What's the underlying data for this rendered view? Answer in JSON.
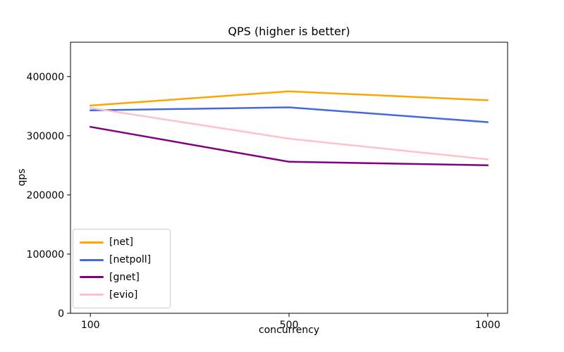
{
  "chart_data": {
    "type": "line",
    "title": "QPS (higher is better)",
    "xlabel": "concurrency",
    "ylabel": "qps",
    "x_scale": "categorical",
    "categories": [
      "100",
      "500",
      "1000"
    ],
    "series": [
      {
        "name": "[net]",
        "color": "#ffa500",
        "values": [
          351000,
          375000,
          360000
        ]
      },
      {
        "name": "[netpoll]",
        "color": "#4169e1",
        "values": [
          343000,
          348000,
          323000
        ]
      },
      {
        "name": "[gnet]",
        "color": "#800080",
        "values": [
          315000,
          256000,
          250000
        ]
      },
      {
        "name": "[evio]",
        "color": "#ffc0cb",
        "values": [
          347000,
          295000,
          260000
        ]
      }
    ],
    "ylim": [
      0,
      458000
    ],
    "yticks": [
      0,
      100000,
      200000,
      300000,
      400000
    ],
    "legend_position": "lower left",
    "grid": false,
    "line_width": 2.5,
    "axis_color": "#000000",
    "background_color": "#ffffff"
  }
}
